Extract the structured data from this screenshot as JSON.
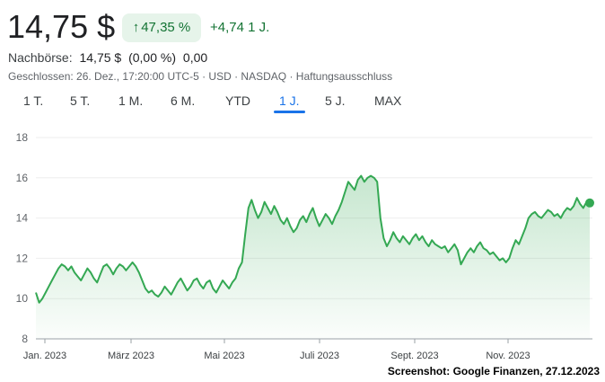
{
  "quote": {
    "price": "14,75 $",
    "pct_change": "47,35 %",
    "pct_arrow": "↑",
    "abs_change": "+4,74 1 J.",
    "after_hours_label": "Nachbörse:",
    "after_hours_price": "14,75 $",
    "after_hours_pct": "(0,00 %)",
    "after_hours_abs": "0,00",
    "closed_info": "Geschlossen: 26. Dez., 17:20:00 UTC-5 · USD · NASDAQ · Haftungsausschluss"
  },
  "tabs": [
    {
      "label": "1 T."
    },
    {
      "label": "5 T."
    },
    {
      "label": "1 M."
    },
    {
      "label": "6 M."
    },
    {
      "label": "YTD"
    },
    {
      "label": "1 J.",
      "active": true
    },
    {
      "label": "5 J."
    },
    {
      "label": "MAX"
    }
  ],
  "colors": {
    "line": "#34a853",
    "fill": "#34a853",
    "positive_text": "#137333",
    "badge_bg": "#e6f4ea",
    "active_tab": "#1a73e8"
  },
  "credit": "Screenshot: Google Finanzen, 27.12.2023",
  "chart_data": {
    "type": "area",
    "y_ticks": [
      8,
      10,
      12,
      14,
      16,
      18
    ],
    "ylim": [
      8,
      18
    ],
    "x_ticks": [
      "Jan. 2023",
      "März 2023",
      "Mai 2023",
      "Juli 2023",
      "Sept. 2023",
      "Nov. 2023"
    ],
    "x_tick_positions": [
      0.01,
      0.2,
      0.4,
      0.6,
      0.8,
      1.0
    ],
    "series": [
      {
        "values": [
          10.3,
          9.8,
          10.0,
          10.3,
          10.6,
          10.9,
          11.2,
          11.5,
          11.7,
          11.6,
          11.4,
          11.6,
          11.3,
          11.1,
          10.9,
          11.2,
          11.5,
          11.3,
          11.0,
          10.8,
          11.2,
          11.6,
          11.7,
          11.5,
          11.2,
          11.5,
          11.7,
          11.6,
          11.4,
          11.6,
          11.8,
          11.6,
          11.3,
          10.9,
          10.5,
          10.3,
          10.4,
          10.2,
          10.1,
          10.3,
          10.6,
          10.4,
          10.2,
          10.5,
          10.8,
          11.0,
          10.7,
          10.4,
          10.6,
          10.9,
          11.0,
          10.7,
          10.5,
          10.8,
          10.9,
          10.5,
          10.3,
          10.6,
          10.9,
          10.7,
          10.5,
          10.8,
          11.0,
          11.5,
          11.8,
          13.2,
          14.5,
          14.9,
          14.4,
          14.0,
          14.3,
          14.8,
          14.5,
          14.2,
          14.6,
          14.3,
          13.9,
          13.7,
          14.0,
          13.6,
          13.3,
          13.5,
          13.9,
          14.1,
          13.8,
          14.2,
          14.5,
          14.0,
          13.6,
          13.9,
          14.2,
          14.0,
          13.7,
          14.1,
          14.4,
          14.8,
          15.3,
          15.8,
          15.6,
          15.4,
          15.9,
          16.1,
          15.8,
          16.0,
          16.1,
          16.0,
          15.8,
          14.0,
          13.0,
          12.6,
          12.9,
          13.3,
          13.0,
          12.8,
          13.1,
          12.9,
          12.7,
          13.0,
          13.2,
          12.9,
          13.1,
          12.8,
          12.6,
          12.9,
          12.7,
          12.6,
          12.5,
          12.6,
          12.3,
          12.5,
          12.7,
          12.4,
          11.7,
          12.0,
          12.3,
          12.5,
          12.3,
          12.6,
          12.8,
          12.5,
          12.4,
          12.2,
          12.3,
          12.1,
          11.9,
          12.0,
          11.8,
          12.0,
          12.5,
          12.9,
          12.7,
          13.1,
          13.5,
          14.0,
          14.2,
          14.3,
          14.1,
          14.0,
          14.2,
          14.4,
          14.3,
          14.1,
          14.2,
          14.0,
          14.3,
          14.5,
          14.4,
          14.6,
          15.0,
          14.7,
          14.5,
          14.8,
          14.75
        ]
      }
    ],
    "last_value": 14.75
  }
}
